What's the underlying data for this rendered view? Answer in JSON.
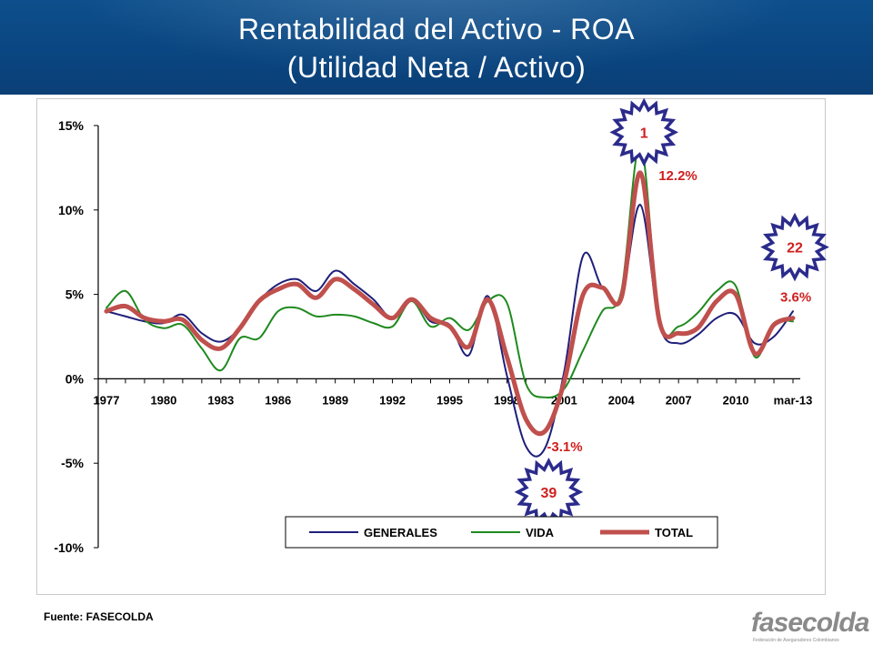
{
  "header": {
    "title_line1": "Rentabilidad  del Activo - ROA",
    "title_line2": "(Utilidad  Neta / Activo)"
  },
  "source": "Fuente: FASECOLDA",
  "logo": {
    "text": "fasecolda",
    "tagline": "Federación de Aseguradores Colombianos"
  },
  "colors": {
    "header": "#0a4580",
    "generales": "#1f1f7a",
    "vida": "#1f8a1f",
    "total": "#c0504d",
    "badge": "#2b2b8c",
    "callout": "#d01f1f"
  },
  "chart_data": {
    "type": "line",
    "title": "",
    "xlabel": "",
    "ylabel": "",
    "ylim": [
      -10,
      15
    ],
    "yticks": [
      15,
      10,
      5,
      0,
      -5,
      -10
    ],
    "ytick_labels": [
      "15%",
      "10%",
      "5%",
      "0%",
      "-5%",
      "-10%"
    ],
    "x_tick_labels": [
      "1977",
      "1980",
      "1983",
      "1986",
      "1989",
      "1992",
      "1995",
      "1998",
      "2001",
      "2004",
      "2007",
      "2010",
      "mar-13"
    ],
    "x": [
      "1977",
      "1978",
      "1979",
      "1980",
      "1981",
      "1982",
      "1983",
      "1984",
      "1985",
      "1986",
      "1987",
      "1988",
      "1989",
      "1990",
      "1991",
      "1992",
      "1993",
      "1994",
      "1995",
      "1996",
      "1997",
      "1998",
      "1999",
      "2000",
      "2001",
      "2002",
      "2003",
      "2004",
      "2005",
      "2006",
      "2007",
      "2008",
      "2009",
      "2010",
      "2011",
      "2012",
      "mar-13"
    ],
    "series": [
      {
        "name": "GENERALES",
        "color": "#1f1f7a",
        "width": 2,
        "values": [
          4.0,
          3.7,
          3.4,
          3.3,
          3.8,
          2.7,
          2.2,
          3.0,
          4.6,
          5.6,
          5.9,
          5.2,
          6.4,
          5.6,
          4.7,
          3.6,
          4.7,
          3.4,
          3.2,
          1.4,
          4.9,
          0.2,
          -4.0,
          -4.1,
          0.4,
          7.3,
          5.4,
          4.8,
          10.3,
          3.2,
          2.1,
          2.6,
          3.6,
          3.8,
          2.1,
          2.5,
          4.0
        ]
      },
      {
        "name": "VIDA",
        "color": "#1f8a1f",
        "width": 2,
        "values": [
          4.2,
          5.2,
          3.5,
          3.0,
          3.2,
          1.8,
          0.5,
          2.4,
          2.4,
          4.0,
          4.2,
          3.7,
          3.8,
          3.7,
          3.3,
          3.1,
          4.6,
          3.1,
          3.6,
          2.9,
          4.6,
          4.5,
          -0.3,
          -1.1,
          -0.6,
          1.7,
          4.0,
          5.2,
          13.9,
          3.4,
          3.1,
          3.9,
          5.2,
          5.5,
          1.3,
          3.3,
          3.4
        ]
      },
      {
        "name": "TOTAL",
        "color": "#c0504d",
        "width": 5,
        "values": [
          4.0,
          4.3,
          3.6,
          3.4,
          3.5,
          2.3,
          1.8,
          3.0,
          4.6,
          5.3,
          5.6,
          4.8,
          5.9,
          5.3,
          4.4,
          3.6,
          4.7,
          3.6,
          3.1,
          1.9,
          4.7,
          1.3,
          -2.4,
          -3.1,
          -0.2,
          5.0,
          5.4,
          4.8,
          12.2,
          3.4,
          2.7,
          3.0,
          4.6,
          5.0,
          1.5,
          3.2,
          3.6
        ]
      }
    ],
    "legend": {
      "position": "bottom-center"
    },
    "annotations": [
      {
        "text": "12.2%",
        "x": "2005",
        "y": 12.2
      },
      {
        "text": "-3.1%",
        "x": "2000",
        "y": -3.1
      },
      {
        "text": "3.6%",
        "x": "mar-13",
        "y": 3.6
      }
    ],
    "badges": [
      {
        "text": "1",
        "x": "2005",
        "y": 14.6
      },
      {
        "text": "22",
        "x": "mar-13",
        "y": 7.8
      },
      {
        "text": "39",
        "x": "2000",
        "y": -6.7
      }
    ]
  }
}
